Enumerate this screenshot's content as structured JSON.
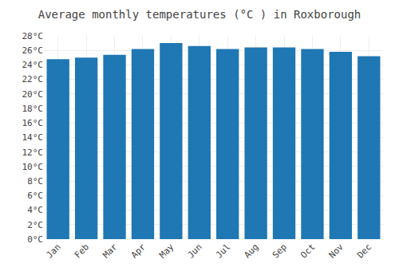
{
  "chart_data": {
    "type": "bar",
    "title": "Average monthly temperatures (°C ) in Roxborough",
    "categories": [
      "Jan",
      "Feb",
      "Mar",
      "Apr",
      "May",
      "Jun",
      "Jul",
      "Aug",
      "Sep",
      "Oct",
      "Nov",
      "Dec"
    ],
    "values": [
      24.8,
      25.0,
      25.4,
      26.2,
      27.0,
      26.6,
      26.2,
      26.4,
      26.4,
      26.2,
      25.8,
      25.2
    ],
    "ylim": [
      0,
      28
    ],
    "yticks": [
      {
        "value": 0,
        "label": "0°C"
      },
      {
        "value": 2,
        "label": "2°C"
      },
      {
        "value": 4,
        "label": "4°C"
      },
      {
        "value": 6,
        "label": "6°C"
      },
      {
        "value": 8,
        "label": "8°C"
      },
      {
        "value": 10,
        "label": "10°C"
      },
      {
        "value": 12,
        "label": "12°C"
      },
      {
        "value": 14,
        "label": "14°C"
      },
      {
        "value": 16,
        "label": "16°C"
      },
      {
        "value": 18,
        "label": "18°C"
      },
      {
        "value": 20,
        "label": "20°C"
      },
      {
        "value": 22,
        "label": "22°C"
      },
      {
        "value": 24,
        "label": "24°C"
      },
      {
        "value": 26,
        "label": "26°C"
      },
      {
        "value": 28,
        "label": "28°C"
      }
    ],
    "grid": true
  }
}
